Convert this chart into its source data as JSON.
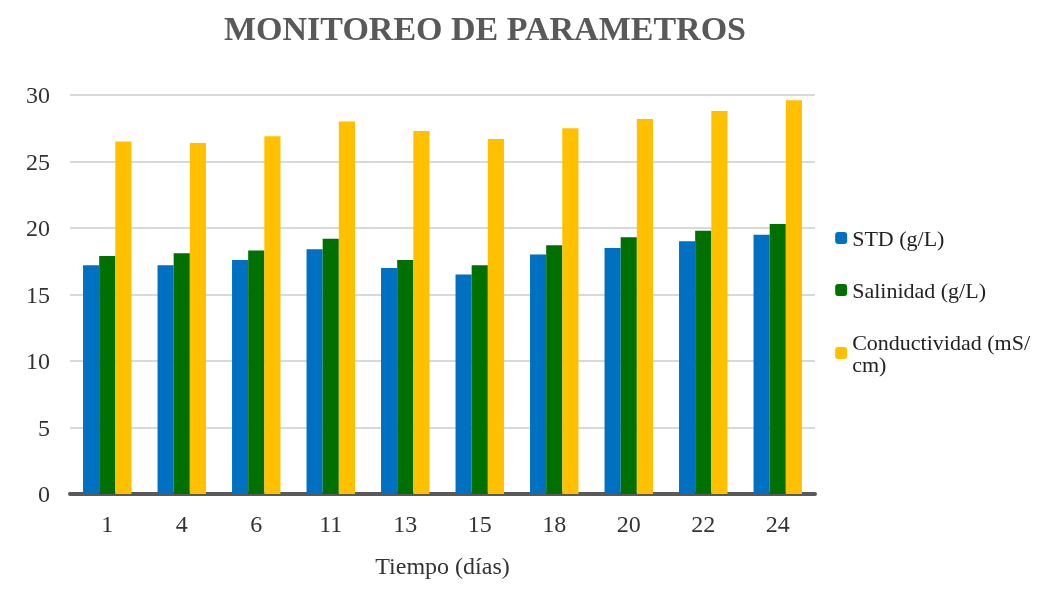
{
  "chart_data": {
    "type": "bar",
    "title": "MONITOREO DE PARAMETROS",
    "xlabel": "Tiempo (días)",
    "categories": [
      "1",
      "4",
      "6",
      "11",
      "13",
      "15",
      "18",
      "20",
      "22",
      "24"
    ],
    "series": [
      {
        "name": "STD (g/L)",
        "color": "#0070c0",
        "values": [
          17.2,
          17.2,
          17.6,
          18.4,
          17.0,
          16.5,
          18.0,
          18.5,
          19.0,
          19.5
        ]
      },
      {
        "name": "Salinidad (g/L)",
        "color": "#007000",
        "values": [
          17.9,
          18.1,
          18.3,
          19.2,
          17.6,
          17.2,
          18.7,
          19.3,
          19.8,
          20.3
        ]
      },
      {
        "name": "Conductividad (mS/cm)",
        "color": "#ffc000",
        "values": [
          26.5,
          26.4,
          26.9,
          28.0,
          27.3,
          26.7,
          27.5,
          28.2,
          28.8,
          29.6
        ]
      }
    ],
    "ylim": [
      0,
      30
    ],
    "yticks": [
      0,
      5,
      10,
      15,
      20,
      25,
      30
    ],
    "grid": "y",
    "legend": "right"
  }
}
